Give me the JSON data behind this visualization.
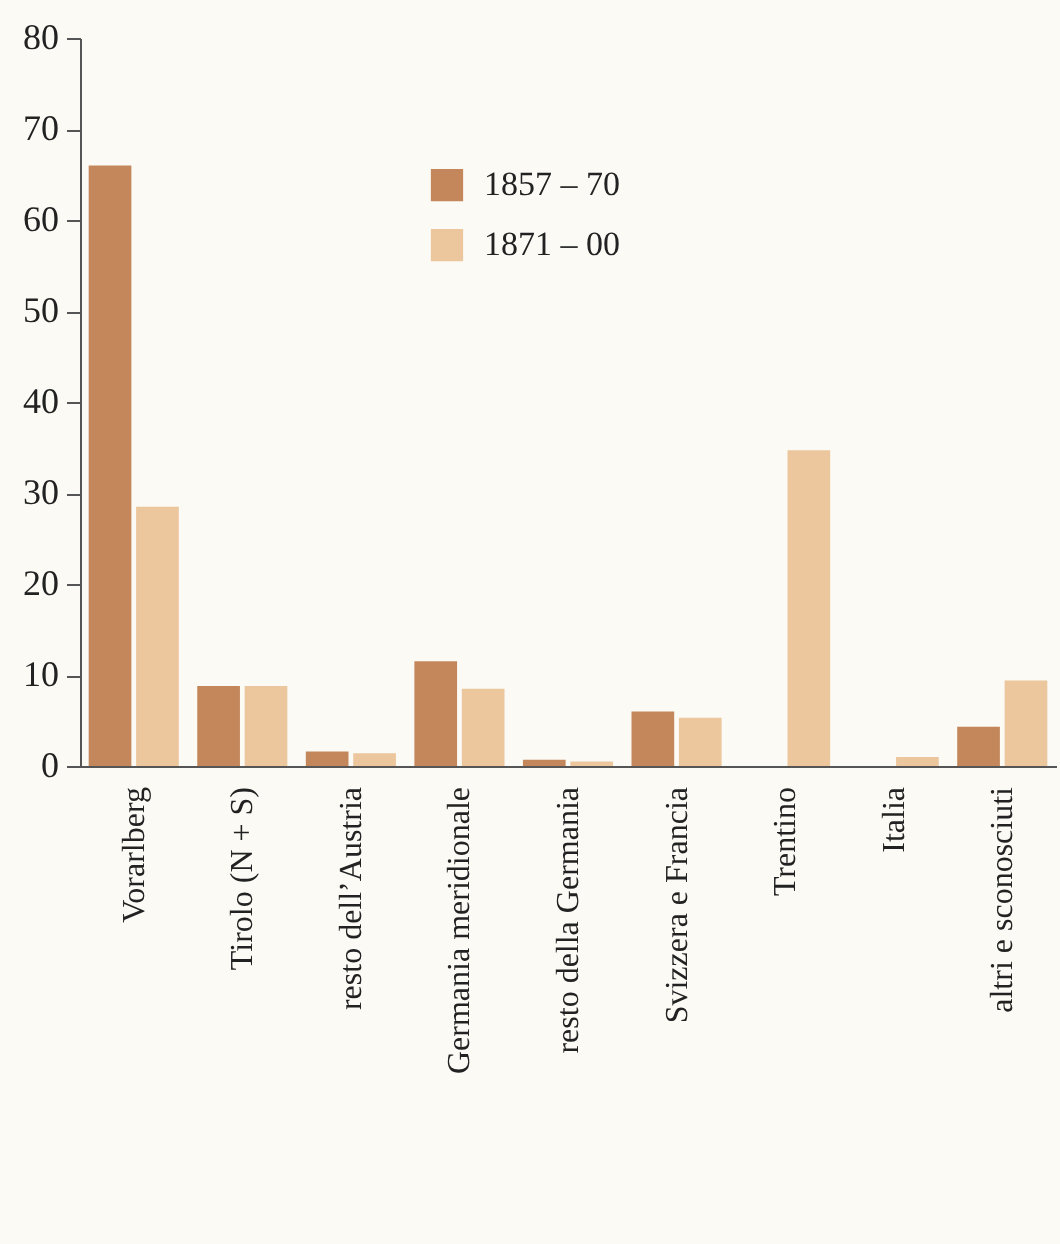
{
  "chart_data": {
    "type": "bar",
    "categories": [
      "Vorarlberg",
      "Tirolo (N + S)",
      "resto dell’Austria",
      "Germania meridionale",
      "resto della Germania",
      "Svizzera e Francia",
      "Trentino",
      "Italia",
      "altri e sconosciuti"
    ],
    "series": [
      {
        "name": "1857 – 70",
        "color": "#c4875b",
        "values": [
          66,
          8.8,
          1.6,
          11.5,
          0.7,
          6.0,
          0,
          0,
          4.3
        ]
      },
      {
        "name": "1871 – 00",
        "color": "#ecc69d",
        "values": [
          28.5,
          8.8,
          1.4,
          8.5,
          0.5,
          5.3,
          34.7,
          1.0,
          9.4
        ]
      }
    ],
    "ylim": [
      0,
      80
    ],
    "yticks": [
      0,
      10,
      20,
      30,
      40,
      50,
      60,
      70,
      80
    ],
    "grid": false,
    "legend": "top"
  }
}
